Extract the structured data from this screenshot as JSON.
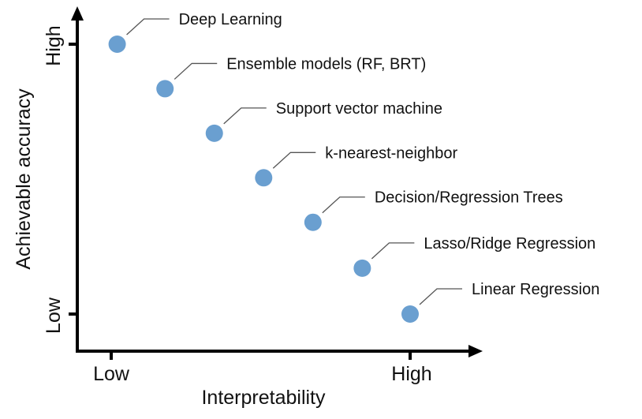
{
  "chart_data": {
    "type": "scatter",
    "title": "",
    "xlabel": "Interpretability",
    "ylabel": "Achievable accuracy",
    "x_ticks": [
      "Low",
      "High"
    ],
    "y_ticks": [
      "Low",
      "High"
    ],
    "xlim": [
      0,
      1
    ],
    "ylim": [
      0,
      1
    ],
    "grid": false,
    "legend": "none",
    "point_color": "#6a9fd0",
    "points": [
      {
        "label": "Deep Learning",
        "x": 0.02,
        "y": 1.0
      },
      {
        "label": "Ensemble models (RF, BRT)",
        "x": 0.18,
        "y": 0.835
      },
      {
        "label": "Support vector machine",
        "x": 0.345,
        "y": 0.67
      },
      {
        "label": "k-nearest-neighbor",
        "x": 0.51,
        "y": 0.505
      },
      {
        "label": "Decision/Regression Trees",
        "x": 0.675,
        "y": 0.34
      },
      {
        "label": "Lasso/Ridge Regression",
        "x": 0.84,
        "y": 0.17
      },
      {
        "label": "Linear Regression",
        "x": 1.0,
        "y": 0.0
      }
    ]
  }
}
